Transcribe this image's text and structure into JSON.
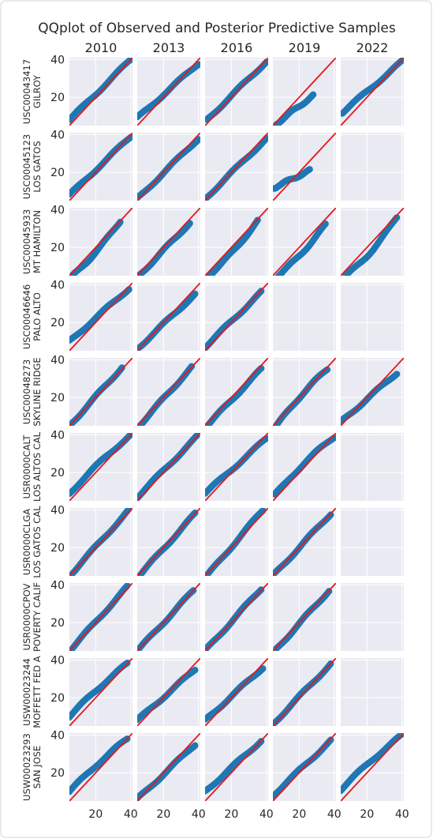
{
  "chart_data": {
    "type": "scatter",
    "title": "QQplot of Observed and Posterior Predictive Samples",
    "columns": [
      "2010",
      "2013",
      "2016",
      "2019",
      "2022"
    ],
    "rows": [
      {
        "station_id": "USC00043417",
        "station_name": "GILROY"
      },
      {
        "station_id": "USC00045123",
        "station_name": "LOS GATOS"
      },
      {
        "station_id": "USC00045933",
        "station_name": "MT HAMILTON"
      },
      {
        "station_id": "USC00046646",
        "station_name": "PALO ALTO"
      },
      {
        "station_id": "USC00048273",
        "station_name": "SKYLINE RIDGE"
      },
      {
        "station_id": "USR0000CALT",
        "station_name": "LOS ALTOS CAL"
      },
      {
        "station_id": "USR0000CLGA",
        "station_name": "LOS GATOS CAL"
      },
      {
        "station_id": "USR0000CPOV",
        "station_name": "POVERTY CALIF"
      },
      {
        "station_id": "USW00023244",
        "station_name": "MOFFETT FED A"
      },
      {
        "station_id": "USW00023293",
        "station_name": "SAN JOSE"
      }
    ],
    "xlim": [
      5,
      41
    ],
    "ylim": [
      5,
      41
    ],
    "xticks": [
      20,
      40
    ],
    "yticks": [
      20,
      40
    ],
    "reference_line": "y = x",
    "point_color": "#1f77b4",
    "line_color": "#e41a1c",
    "panel_background": "#eaeaf2",
    "grid": true,
    "panels": [
      [
        {
          "present": true,
          "xmin": 5,
          "xmax": 40,
          "ymin": 8,
          "ymax": 40,
          "bend": 0.0
        },
        {
          "present": true,
          "xmin": 5,
          "xmax": 40,
          "ymin": 9,
          "ymax": 38,
          "bend": 0.0
        },
        {
          "present": true,
          "xmin": 6,
          "xmax": 40,
          "ymin": 8,
          "ymax": 39,
          "bend": 0.0
        },
        {
          "present": true,
          "xmin": 7,
          "xmax": 28,
          "ymin": 6,
          "ymax": 21,
          "bend": 0.0
        },
        {
          "present": true,
          "xmin": 6,
          "xmax": 40,
          "ymin": 12,
          "ymax": 39,
          "bend": 0.0
        }
      ],
      [
        {
          "present": true,
          "xmin": 5,
          "xmax": 40,
          "ymin": 8,
          "ymax": 39,
          "bend": 0.0
        },
        {
          "present": true,
          "xmin": 5,
          "xmax": 40,
          "ymin": 6,
          "ymax": 38,
          "bend": 0.0
        },
        {
          "present": true,
          "xmin": 5,
          "xmax": 40,
          "ymin": 6,
          "ymax": 38,
          "bend": 0.0
        },
        {
          "present": true,
          "xmin": 6,
          "xmax": 26,
          "ymin": 12,
          "ymax": 21,
          "bend": 0.0
        },
        {
          "present": false
        }
      ],
      [
        {
          "present": true,
          "xmin": 7,
          "xmax": 34,
          "ymin": 5,
          "ymax": 34,
          "bend": -1.5
        },
        {
          "present": true,
          "xmin": 6,
          "xmax": 35,
          "ymin": 5,
          "ymax": 33,
          "bend": 0.0
        },
        {
          "present": true,
          "xmin": 7,
          "xmax": 35,
          "ymin": 5,
          "ymax": 34,
          "bend": -1.5
        },
        {
          "present": true,
          "xmin": 8,
          "xmax": 35,
          "ymin": 5,
          "ymax": 32,
          "bend": -1.5
        },
        {
          "present": true,
          "xmin": 8,
          "xmax": 37,
          "ymin": 5,
          "ymax": 36,
          "bend": -2.5
        }
      ],
      [
        {
          "present": true,
          "xmin": 5,
          "xmax": 39,
          "ymin": 10,
          "ymax": 38,
          "bend": 0.0
        },
        {
          "present": true,
          "xmin": 5,
          "xmax": 38,
          "ymin": 6,
          "ymax": 35,
          "bend": 0.0
        },
        {
          "present": true,
          "xmin": 5,
          "xmax": 37,
          "ymin": 7,
          "ymax": 36,
          "bend": 0.0
        },
        {
          "present": false
        },
        {
          "present": false
        }
      ],
      [
        {
          "present": true,
          "xmin": 5,
          "xmax": 35,
          "ymin": 5,
          "ymax": 36,
          "bend": 0.0
        },
        {
          "present": true,
          "xmin": 6,
          "xmax": 36,
          "ymin": 5,
          "ymax": 36,
          "bend": 0.0
        },
        {
          "present": true,
          "xmin": 6,
          "xmax": 37,
          "ymin": 5,
          "ymax": 35,
          "bend": 0.0
        },
        {
          "present": true,
          "xmin": 7,
          "xmax": 36,
          "ymin": 5,
          "ymax": 35,
          "bend": 1.5
        },
        {
          "present": true,
          "xmin": 5,
          "xmax": 37,
          "ymin": 7,
          "ymax": 33,
          "bend": 0.0
        }
      ],
      [
        {
          "present": true,
          "xmin": 5,
          "xmax": 40,
          "ymin": 9,
          "ymax": 40,
          "bend": 1.0
        },
        {
          "present": true,
          "xmin": 5,
          "xmax": 39,
          "ymin": 7,
          "ymax": 39,
          "bend": 0.0
        },
        {
          "present": true,
          "xmin": 5,
          "xmax": 40,
          "ymin": 9,
          "ymax": 38,
          "bend": 0.0
        },
        {
          "present": true,
          "xmin": 6,
          "xmax": 40,
          "ymin": 8,
          "ymax": 39,
          "bend": 1.5
        },
        {
          "present": false
        }
      ],
      [
        {
          "present": true,
          "xmin": 5,
          "xmax": 39,
          "ymin": 5,
          "ymax": 40,
          "bend": 0.0
        },
        {
          "present": true,
          "xmin": 6,
          "xmax": 38,
          "ymin": 5,
          "ymax": 38,
          "bend": 0.0
        },
        {
          "present": true,
          "xmin": 6,
          "xmax": 38,
          "ymin": 5,
          "ymax": 40,
          "bend": 0.0
        },
        {
          "present": true,
          "xmin": 6,
          "xmax": 38,
          "ymin": 6,
          "ymax": 38,
          "bend": 0.0
        },
        {
          "present": false
        }
      ],
      [
        {
          "present": true,
          "xmin": 5,
          "xmax": 38,
          "ymin": 5,
          "ymax": 39,
          "bend": 0.0
        },
        {
          "present": true,
          "xmin": 5,
          "xmax": 37,
          "ymin": 5,
          "ymax": 37,
          "bend": 0.0
        },
        {
          "present": true,
          "xmin": 5,
          "xmax": 37,
          "ymin": 5,
          "ymax": 38,
          "bend": 0.0
        },
        {
          "present": true,
          "xmin": 7,
          "xmax": 37,
          "ymin": 6,
          "ymax": 37,
          "bend": 0.0
        },
        {
          "present": false
        }
      ],
      [
        {
          "present": true,
          "xmin": 5,
          "xmax": 38,
          "ymin": 10,
          "ymax": 38,
          "bend": 1.0
        },
        {
          "present": true,
          "xmin": 5,
          "xmax": 38,
          "ymin": 8,
          "ymax": 35,
          "bend": 0.0
        },
        {
          "present": true,
          "xmin": 5,
          "xmax": 38,
          "ymin": 8,
          "ymax": 36,
          "bend": 0.0
        },
        {
          "present": true,
          "xmin": 5,
          "xmax": 38,
          "ymin": 6,
          "ymax": 38,
          "bend": 0.0
        },
        {
          "present": false
        }
      ],
      [
        {
          "present": true,
          "xmin": 5,
          "xmax": 38,
          "ymin": 10,
          "ymax": 38,
          "bend": 1.0
        },
        {
          "present": true,
          "xmin": 5,
          "xmax": 38,
          "ymin": 6,
          "ymax": 35,
          "bend": 0.0
        },
        {
          "present": true,
          "xmin": 5,
          "xmax": 37,
          "ymin": 10,
          "ymax": 37,
          "bend": 0.0
        },
        {
          "present": true,
          "xmin": 5,
          "xmax": 38,
          "ymin": 8,
          "ymax": 37,
          "bend": 0.0
        },
        {
          "present": true,
          "xmin": 5,
          "xmax": 40,
          "ymin": 11,
          "ymax": 40,
          "bend": 1.0
        }
      ]
    ]
  }
}
